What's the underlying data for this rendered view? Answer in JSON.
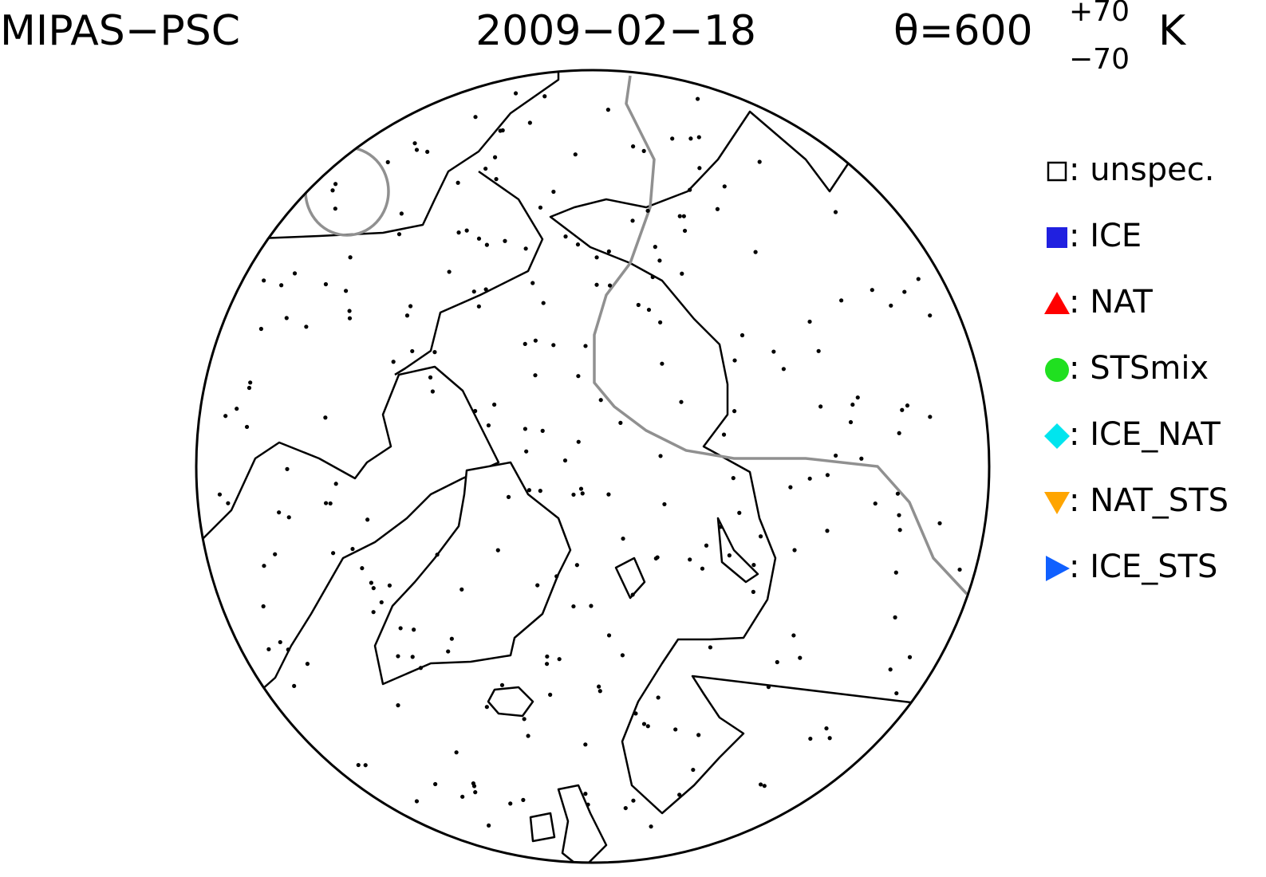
{
  "header": {
    "instrument": "MIPAS−PSC",
    "date": "2009−02−18",
    "theta": "θ=600",
    "theta_upper": "+70",
    "theta_lower": "−70",
    "unit": "K"
  },
  "legend": {
    "items": [
      {
        "marker": "square-open",
        "color": "#000000",
        "label": ": unspec."
      },
      {
        "marker": "square",
        "color": "#2020e0",
        "label": ": ICE"
      },
      {
        "marker": "triangle-up",
        "color": "#ff0000",
        "label": ": NAT"
      },
      {
        "marker": "circle",
        "color": "#20e020",
        "label": ": STSmix"
      },
      {
        "marker": "diamond",
        "color": "#00e5ee",
        "label": ": ICE_NAT"
      },
      {
        "marker": "triangle-down",
        "color": "#ffa500",
        "label": ": NAT_STS"
      },
      {
        "marker": "triangle-right",
        "color": "#1060ff",
        "label": ": ICE_STS"
      }
    ]
  }
}
